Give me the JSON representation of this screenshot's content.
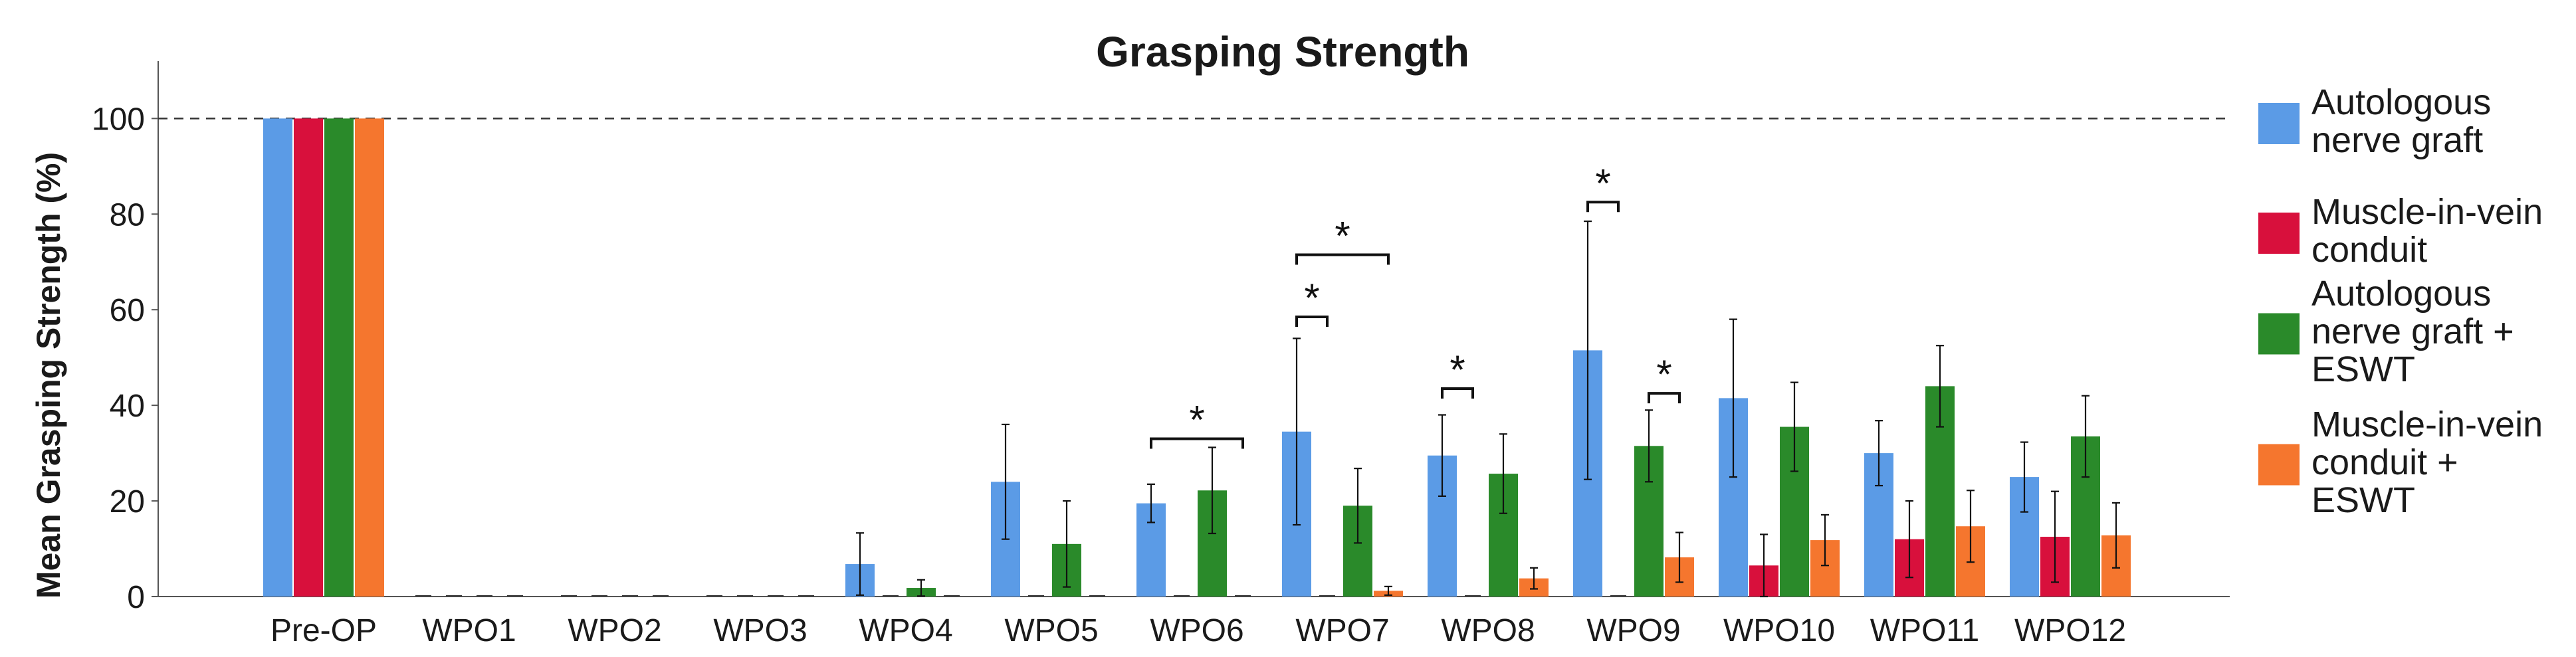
{
  "chart_data": {
    "type": "bar",
    "title": "Grasping Strength",
    "xlabel": "",
    "ylabel": "Mean Grasping Strength (%)",
    "ylim": [
      0,
      112
    ],
    "yticks": [
      0,
      20,
      40,
      60,
      80,
      100
    ],
    "reference_line": 100,
    "grid": false,
    "legend_position": "right",
    "categories": [
      "Pre-OP",
      "WPO1",
      "WPO2",
      "WPO3",
      "WPO4",
      "WPO5",
      "WPO6",
      "WPO7",
      "WPO8",
      "WPO9",
      "WPO10",
      "WPO11",
      "WPO12"
    ],
    "series": [
      {
        "name": "Autologous nerve graft",
        "legend_lines": [
          "Autologous",
          "nerve graft"
        ],
        "color": "#5b9be6",
        "values": [
          100,
          0,
          0,
          0,
          6.8,
          24,
          19.5,
          34.5,
          29.5,
          51.5,
          41.5,
          30,
          25
        ],
        "errors": [
          0,
          0,
          0,
          0,
          6.5,
          12,
          4,
          19.5,
          8.5,
          27,
          16.5,
          6.8,
          7.3
        ]
      },
      {
        "name": "Muscle-in-vein conduit",
        "legend_lines": [
          "Muscle-in-vein",
          "conduit"
        ],
        "color": "#d8103c",
        "values": [
          100,
          0,
          0,
          0,
          0,
          0,
          0,
          0,
          0,
          0,
          6.5,
          12,
          12.5
        ],
        "errors": [
          0,
          0,
          0,
          0,
          0,
          0,
          0,
          0,
          0,
          0,
          6.5,
          8,
          9.5
        ]
      },
      {
        "name": "Autologous nerve graft + ESWT",
        "legend_lines": [
          "Autologous",
          "nerve graft +",
          "ESWT"
        ],
        "color": "#2a8a2a",
        "values": [
          100,
          0,
          0,
          0,
          1.8,
          11,
          22.2,
          19,
          25.7,
          31.5,
          35.5,
          44,
          33.5
        ],
        "errors": [
          0,
          0,
          0,
          0,
          1.7,
          9,
          9,
          7.8,
          8.3,
          7.5,
          9.3,
          8.5,
          8.5
        ]
      },
      {
        "name": "Muscle-in-vein conduit + ESWT",
        "legend_lines": [
          "Muscle-in-vein",
          "conduit +",
          "ESWT"
        ],
        "color": "#f5762e",
        "values": [
          100,
          0,
          0,
          0,
          0,
          0,
          0,
          1.2,
          3.8,
          8.2,
          11.8,
          14.7,
          12.8
        ],
        "errors": [
          0,
          0,
          0,
          0,
          0,
          0,
          0,
          0.9,
          2.2,
          5.2,
          5.3,
          7.5,
          6.8
        ]
      }
    ],
    "significance": [
      {
        "category": "WPO6",
        "from_series": 0,
        "to_series": 3,
        "level": 33,
        "label": "*"
      },
      {
        "category": "WPO7",
        "from_series": 0,
        "to_series": 3,
        "level": 71.5,
        "label": "*"
      },
      {
        "category": "WPO7",
        "from_series": 0,
        "to_series": 1,
        "level": 58.5,
        "label": "*"
      },
      {
        "category": "WPO8",
        "from_series": 0,
        "to_series": 1,
        "level": 43.5,
        "label": "*"
      },
      {
        "category": "WPO9",
        "from_series": 0,
        "to_series": 1,
        "level": 82.5,
        "label": "*"
      },
      {
        "category": "WPO9",
        "from_series": 2,
        "to_series": 3,
        "level": 42.5,
        "label": "*"
      }
    ]
  }
}
